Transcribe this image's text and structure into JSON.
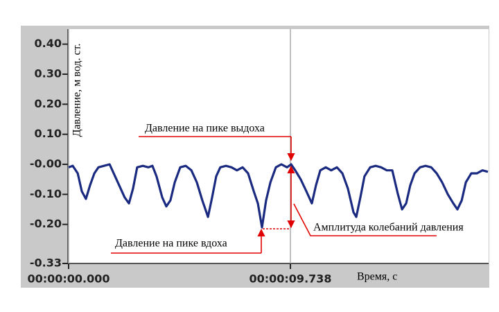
{
  "chart_data": {
    "type": "line",
    "y_label": "Давление, м вод. ст.",
    "x_label": "Время, с",
    "xlim": [
      0,
      18.44
    ],
    "xticks": [
      {
        "value": 0,
        "label": "00:00:00.000"
      },
      {
        "value": 9.738,
        "label": "00:00:09.738"
      }
    ],
    "ylim": [
      -0.33,
      0.45
    ],
    "yticks": [
      {
        "value": 0.4,
        "label": "0.40"
      },
      {
        "value": 0.3,
        "label": "0.30"
      },
      {
        "value": 0.2,
        "label": "0.20"
      },
      {
        "value": 0.1,
        "label": "0.10"
      },
      {
        "value": 0,
        "label": "-0.00"
      },
      {
        "value": -0.1,
        "label": "-0.10"
      },
      {
        "value": -0.2,
        "label": "-0.20"
      },
      {
        "value": -0.33,
        "label": "-0.33"
      }
    ],
    "x": [
      0,
      0.18,
      0.4,
      0.58,
      0.76,
      0.94,
      1.13,
      1.31,
      1.55,
      1.8,
      1.98,
      2.22,
      2.46,
      2.65,
      2.83,
      3.01,
      3.26,
      3.5,
      3.68,
      3.86,
      4.11,
      4.29,
      4.47,
      4.66,
      4.9,
      5.14,
      5.39,
      5.63,
      5.87,
      6.12,
      6.3,
      6.48,
      6.66,
      6.91,
      7.15,
      7.39,
      7.64,
      7.88,
      8.13,
      8.31,
      8.49,
      8.67,
      8.86,
      9.1,
      9.34,
      9.59,
      9.77,
      9.95,
      10.19,
      10.44,
      10.68,
      10.86,
      11.05,
      11.29,
      11.53,
      11.78,
      12.02,
      12.26,
      12.51,
      12.63,
      12.81,
      12.99,
      13.24,
      13.48,
      13.72,
      13.97,
      14.21,
      14.46,
      14.64,
      14.82,
      15.0,
      15.19,
      15.43,
      15.67,
      15.92,
      16.16,
      16.4,
      16.65,
      16.89,
      17.07,
      17.26,
      17.44,
      17.68,
      17.93,
      18.17,
      18.41
    ],
    "series": [
      {
        "color": "#1a2a80",
        "values": [
          -0.01,
          -0.005,
          -0.03,
          -0.09,
          -0.115,
          -0.07,
          -0.03,
          -0.01,
          -0.005,
          0.0,
          -0.03,
          -0.07,
          -0.11,
          -0.13,
          -0.08,
          -0.01,
          -0.005,
          -0.01,
          -0.005,
          -0.04,
          -0.11,
          -0.14,
          -0.12,
          -0.06,
          -0.01,
          -0.005,
          -0.02,
          -0.06,
          -0.12,
          -0.175,
          -0.11,
          -0.04,
          -0.01,
          -0.005,
          -0.01,
          -0.02,
          -0.01,
          -0.03,
          -0.09,
          -0.13,
          -0.21,
          -0.12,
          -0.06,
          -0.01,
          0.0,
          -0.01,
          0.0,
          -0.02,
          -0.05,
          -0.09,
          -0.13,
          -0.07,
          -0.02,
          -0.01,
          -0.02,
          -0.01,
          -0.03,
          -0.08,
          -0.16,
          -0.175,
          -0.11,
          -0.04,
          -0.01,
          -0.005,
          -0.01,
          -0.02,
          -0.02,
          -0.1,
          -0.15,
          -0.13,
          -0.07,
          -0.03,
          -0.01,
          -0.005,
          -0.01,
          -0.03,
          -0.06,
          -0.1,
          -0.13,
          -0.15,
          -0.12,
          -0.06,
          -0.03,
          -0.03,
          -0.02,
          -0.025
        ]
      }
    ],
    "annotations": [
      "Давление на пике выдоха",
      "Давление на пике вдоха",
      "Амплитуда колебаний давления"
    ]
  }
}
